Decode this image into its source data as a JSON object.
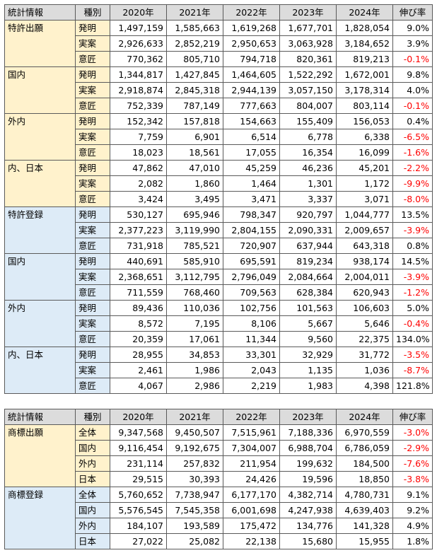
{
  "headers": [
    "統計情報",
    "種別",
    "2020年",
    "2021年",
    "2022年",
    "2023年",
    "2024年",
    "伸び率"
  ],
  "table1": [
    {
      "group": "特許出願",
      "color": "y",
      "rows": [
        {
          "type": "発明",
          "values": [
            "1,497,159",
            "1,585,663",
            "1,619,268",
            "1,677,701",
            "1,828,054"
          ],
          "growth": "9.0%",
          "neg": false
        },
        {
          "type": "実案",
          "values": [
            "2,926,633",
            "2,852,219",
            "2,950,653",
            "3,063,928",
            "3,184,652"
          ],
          "growth": "3.9%",
          "neg": false
        },
        {
          "type": "意匠",
          "values": [
            "770,362",
            "805,710",
            "794,718",
            "820,361",
            "819,213"
          ],
          "growth": "-0.1%",
          "neg": true
        }
      ]
    },
    {
      "group": "国内",
      "color": "y",
      "rows": [
        {
          "type": "発明",
          "values": [
            "1,344,817",
            "1,427,845",
            "1,464,605",
            "1,522,292",
            "1,672,001"
          ],
          "growth": "9.8%",
          "neg": false
        },
        {
          "type": "実案",
          "values": [
            "2,918,874",
            "2,845,318",
            "2,944,139",
            "3,057,150",
            "3,178,314"
          ],
          "growth": "4.0%",
          "neg": false
        },
        {
          "type": "意匠",
          "values": [
            "752,339",
            "787,149",
            "777,663",
            "804,007",
            "803,114"
          ],
          "growth": "-0.1%",
          "neg": true
        }
      ]
    },
    {
      "group": "外内",
      "color": "y",
      "rows": [
        {
          "type": "発明",
          "values": [
            "152,342",
            "157,818",
            "154,663",
            "155,409",
            "156,053"
          ],
          "growth": "0.4%",
          "neg": false
        },
        {
          "type": "実案",
          "values": [
            "7,759",
            "6,901",
            "6,514",
            "6,778",
            "6,338"
          ],
          "growth": "-6.5%",
          "neg": true
        },
        {
          "type": "意匠",
          "values": [
            "18,023",
            "18,561",
            "17,055",
            "16,354",
            "16,099"
          ],
          "growth": "-1.6%",
          "neg": true
        }
      ]
    },
    {
      "group": "内、日本",
      "color": "y",
      "rows": [
        {
          "type": "発明",
          "values": [
            "47,862",
            "47,010",
            "45,259",
            "46,236",
            "45,201"
          ],
          "growth": "-2.2%",
          "neg": true
        },
        {
          "type": "実案",
          "values": [
            "2,082",
            "1,860",
            "1,464",
            "1,301",
            "1,172"
          ],
          "growth": "-9.9%",
          "neg": true
        },
        {
          "type": "意匠",
          "values": [
            "3,424",
            "3,495",
            "3,471",
            "3,337",
            "3,071"
          ],
          "growth": "-8.0%",
          "neg": true
        }
      ]
    },
    {
      "group": "特許登録",
      "color": "b",
      "rows": [
        {
          "type": "発明",
          "values": [
            "530,127",
            "695,946",
            "798,347",
            "920,797",
            "1,044,777"
          ],
          "growth": "13.5%",
          "neg": false
        },
        {
          "type": "実案",
          "values": [
            "2,377,223",
            "3,119,990",
            "2,804,155",
            "2,090,331",
            "2,009,657"
          ],
          "growth": "-3.9%",
          "neg": true
        },
        {
          "type": "意匠",
          "values": [
            "731,918",
            "785,521",
            "720,907",
            "637,944",
            "643,318"
          ],
          "growth": "0.8%",
          "neg": false
        }
      ]
    },
    {
      "group": "国内",
      "color": "b",
      "rows": [
        {
          "type": "発明",
          "values": [
            "440,691",
            "585,910",
            "695,591",
            "819,234",
            "938,174"
          ],
          "growth": "14.5%",
          "neg": false
        },
        {
          "type": "実案",
          "values": [
            "2,368,651",
            "3,112,795",
            "2,796,049",
            "2,084,664",
            "2,004,011"
          ],
          "growth": "-3.9%",
          "neg": true
        },
        {
          "type": "意匠",
          "values": [
            "711,559",
            "768,460",
            "709,563",
            "628,384",
            "620,943"
          ],
          "growth": "-1.2%",
          "neg": true
        }
      ]
    },
    {
      "group": "外内",
      "color": "b",
      "rows": [
        {
          "type": "発明",
          "values": [
            "89,436",
            "110,036",
            "102,756",
            "101,563",
            "106,603"
          ],
          "growth": "5.0%",
          "neg": false
        },
        {
          "type": "実案",
          "values": [
            "8,572",
            "7,195",
            "8,106",
            "5,667",
            "5,646"
          ],
          "growth": "-0.4%",
          "neg": true
        },
        {
          "type": "意匠",
          "values": [
            "20,359",
            "17,061",
            "11,344",
            "9,560",
            "22,375"
          ],
          "growth": "134.0%",
          "neg": false
        }
      ]
    },
    {
      "group": "内、日本",
      "color": "b",
      "rows": [
        {
          "type": "発明",
          "values": [
            "28,955",
            "34,853",
            "33,301",
            "32,929",
            "31,772"
          ],
          "growth": "-3.5%",
          "neg": true
        },
        {
          "type": "実案",
          "values": [
            "2,461",
            "1,986",
            "2,043",
            "1,135",
            "1,036"
          ],
          "growth": "-8.7%",
          "neg": true
        },
        {
          "type": "意匠",
          "values": [
            "4,067",
            "2,986",
            "2,219",
            "1,983",
            "4,398"
          ],
          "growth": "121.8%",
          "neg": false
        }
      ]
    }
  ],
  "table2": [
    {
      "group": "商標出願",
      "color": "y",
      "rows": [
        {
          "type": "全体",
          "values": [
            "9,347,568",
            "9,450,507",
            "7,515,961",
            "7,188,336",
            "6,970,559"
          ],
          "growth": "-3.0%",
          "neg": true
        },
        {
          "type": "国内",
          "values": [
            "9,116,454",
            "9,192,675",
            "7,304,007",
            "6,988,704",
            "6,786,059"
          ],
          "growth": "-2.9%",
          "neg": true
        },
        {
          "type": "外内",
          "values": [
            "231,114",
            "257,832",
            "211,954",
            "199,632",
            "184,500"
          ],
          "growth": "-7.6%",
          "neg": true
        },
        {
          "type": "日本",
          "values": [
            "29,515",
            "30,393",
            "24,426",
            "19,596",
            "18,850"
          ],
          "growth": "-3.8%",
          "neg": true
        }
      ]
    },
    {
      "group": "商標登録",
      "color": "b",
      "rows": [
        {
          "type": "全体",
          "values": [
            "5,760,652",
            "7,738,947",
            "6,177,170",
            "4,382,714",
            "4,780,731"
          ],
          "growth": "9.1%",
          "neg": false
        },
        {
          "type": "国内",
          "values": [
            "5,576,545",
            "7,545,358",
            "6,001,698",
            "4,247,938",
            "4,639,403"
          ],
          "growth": "9.2%",
          "neg": false
        },
        {
          "type": "外内",
          "values": [
            "184,107",
            "193,589",
            "175,472",
            "134,776",
            "141,328"
          ],
          "growth": "4.9%",
          "neg": false
        },
        {
          "type": "日本",
          "values": [
            "27,022",
            "25,082",
            "22,138",
            "15,680",
            "15,955"
          ],
          "growth": "1.8%",
          "neg": false
        }
      ]
    }
  ]
}
